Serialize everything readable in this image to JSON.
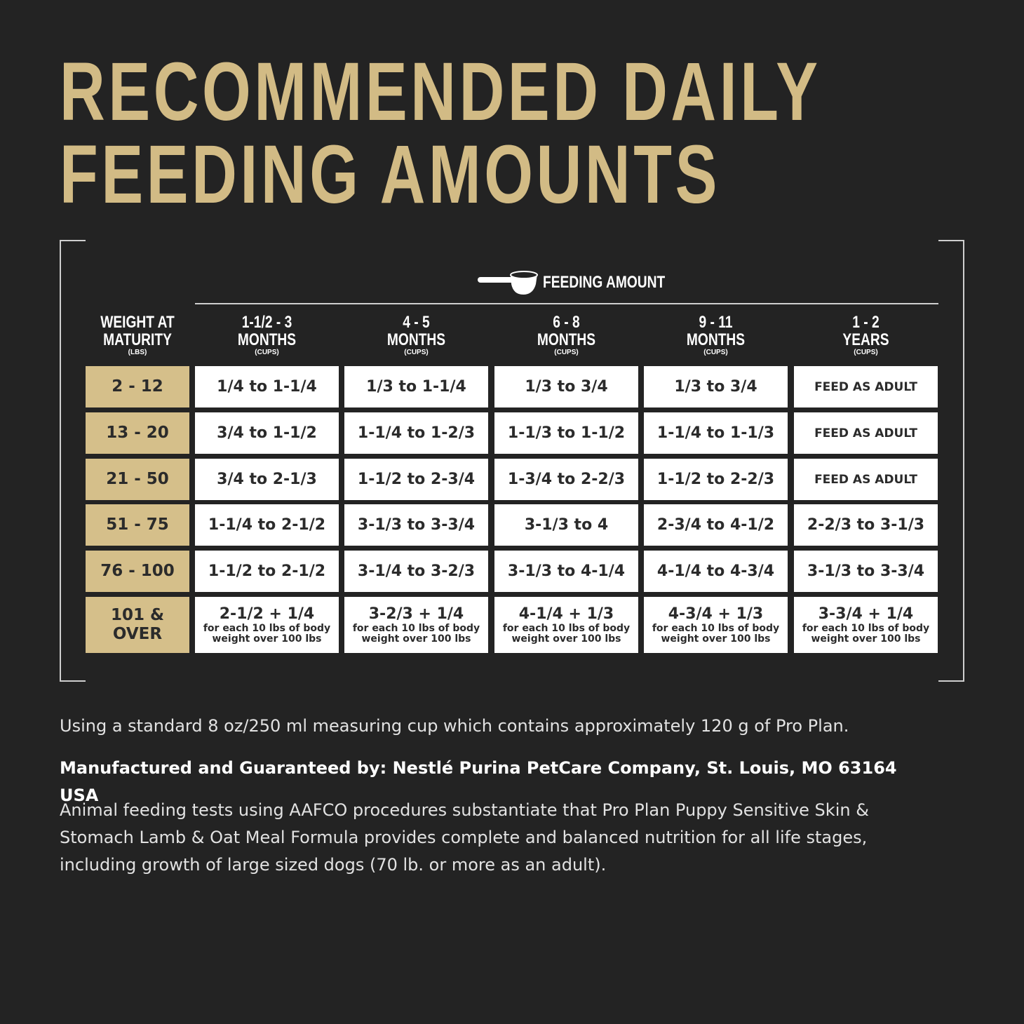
{
  "title": [
    "RECOMMENDED DAILY",
    "FEEDING AMOUNTS"
  ],
  "table": {
    "group_label": "FEEDING AMOUNT",
    "columns": [
      {
        "lines": [
          "WEIGHT AT",
          "MATURITY"
        ],
        "unit": "(LBS)"
      },
      {
        "lines": [
          "1-1/2 - 3",
          "MONTHS"
        ],
        "unit": "(CUPS)"
      },
      {
        "lines": [
          "4 - 5",
          "MONTHS"
        ],
        "unit": "(CUPS)"
      },
      {
        "lines": [
          "6 - 8",
          "MONTHS"
        ],
        "unit": "(CUPS)"
      },
      {
        "lines": [
          "9 - 11",
          "MONTHS"
        ],
        "unit": "(CUPS)"
      },
      {
        "lines": [
          "1 - 2",
          "YEARS"
        ],
        "unit": "(CUPS)"
      }
    ],
    "rows": [
      {
        "weight": [
          "2 - 12"
        ],
        "cells": [
          "1/4 to 1-1/4",
          "1/3 to 1-1/4",
          "1/3 to 3/4",
          "1/3 to 3/4",
          "FEED AS ADULT"
        ]
      },
      {
        "weight": [
          "13 - 20"
        ],
        "cells": [
          "3/4 to 1-1/2",
          "1-1/4 to 1-2/3",
          "1-1/3 to 1-1/2",
          "1-1/4 to 1-1/3",
          "FEED AS ADULT"
        ]
      },
      {
        "weight": [
          "21 - 50"
        ],
        "cells": [
          "3/4 to 2-1/3",
          "1-1/2 to 2-3/4",
          "1-3/4 to 2-2/3",
          "1-1/2 to 2-2/3",
          "FEED AS ADULT"
        ]
      },
      {
        "weight": [
          "51 - 75"
        ],
        "cells": [
          "1-1/4 to 2-1/2",
          "3-1/3 to 3-3/4",
          "3-1/3 to 4",
          "2-3/4 to 4-1/2",
          "2-2/3 to 3-1/3"
        ]
      },
      {
        "weight": [
          "76 - 100"
        ],
        "cells": [
          "1-1/2 to 2-1/2",
          "3-1/4 to 3-2/3",
          "3-1/3 to 4-1/4",
          "4-1/4 to 4-3/4",
          "3-1/3 to 3-3/4"
        ]
      },
      {
        "weight": [
          "101 &",
          "OVER"
        ],
        "cells": [
          {
            "main": "2-1/2 + 1/4",
            "note": [
              "for each 10 lbs of body",
              "weight over 100 lbs"
            ]
          },
          {
            "main": "3-2/3 + 1/4",
            "note": [
              "for each 10 lbs of body",
              "weight over 100 lbs"
            ]
          },
          {
            "main": "4-1/4 + 1/3",
            "note": [
              "for each 10 lbs of body",
              "weight over 100 lbs"
            ]
          },
          {
            "main": "4-3/4 + 1/3",
            "note": [
              "for each 10 lbs of body",
              "weight over 100 lbs"
            ]
          },
          {
            "main": "3-3/4 + 1/4",
            "note": [
              "for each 10 lbs of body",
              "weight over 100 lbs"
            ]
          }
        ]
      }
    ]
  },
  "notes": [
    "Using a standard 8 oz/250 ml measuring cup which contains approximately 120 g of Pro Plan.",
    "Manufactured and Guaranteed by: Nestlé Purina PetCare Company, St. Louis, MO 63164 USA",
    "Animal feeding tests using AAFCO procedures substantiate that Pro Plan Puppy Sensitive Skin & Stomach Lamb & Oat Meal Formula provides complete and balanced nutrition for all life stages, including growth of large sized dogs (70 lb. or more as an adult)."
  ]
}
